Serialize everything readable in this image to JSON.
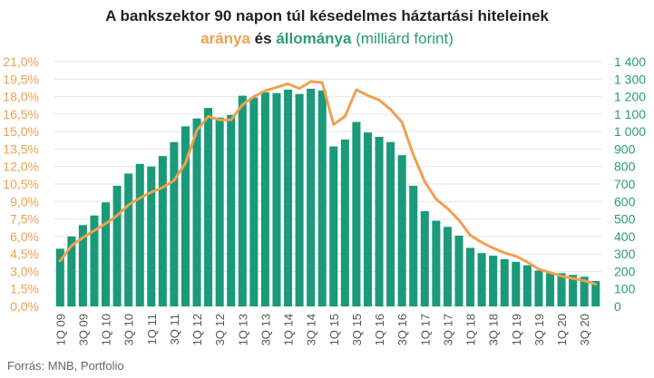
{
  "title": {
    "line1": "A bankszektor 90 napon túl késedelmes háztartási hiteleinek",
    "ratio_word": "aránya",
    "and_word": "és",
    "stock_word": "állománya",
    "unit": "(milliárd forint)"
  },
  "source": "Forrás: MNB, Portfolio",
  "colors": {
    "bars": "#1a9a7a",
    "line": "#f0a050",
    "left_axis_text": "#f0a050",
    "right_axis_text": "#2a9c78",
    "grid": "#e6e6e6",
    "x_text": "#555555"
  },
  "chart_data": {
    "type": "bar",
    "categories": [
      "1Q 09",
      "2Q 09",
      "3Q 09",
      "4Q 09",
      "1Q 10",
      "2Q 10",
      "3Q 10",
      "4Q 10",
      "1Q 11",
      "2Q 11",
      "3Q 11",
      "4Q 11",
      "1Q 12",
      "2Q 12",
      "3Q 12",
      "4Q 12",
      "1Q 13",
      "2Q 13",
      "3Q 13",
      "4Q 13",
      "1Q 14",
      "2Q 14",
      "3Q 14",
      "4Q 14",
      "1Q 15",
      "2Q 15",
      "3Q 15",
      "4Q 15",
      "1Q 16",
      "2Q 16",
      "3Q 16",
      "4Q 16",
      "1Q 17",
      "2Q 17",
      "3Q 17",
      "4Q 17",
      "1Q 18",
      "2Q 18",
      "3Q 18",
      "4Q 18",
      "1Q 19",
      "2Q 19",
      "3Q 19",
      "4Q 19",
      "1Q 20",
      "2Q 20",
      "3Q 20",
      "4Q 20"
    ],
    "x_tick_labels": [
      "1Q 09",
      "3Q 09",
      "1Q 10",
      "3Q 10",
      "1Q 11",
      "3Q 11",
      "1Q 12",
      "3Q 12",
      "1Q 13",
      "3Q 13",
      "1Q 14",
      "3Q 14",
      "1Q 15",
      "3Q 15",
      "1Q 16",
      "3Q 16",
      "1Q 17",
      "3Q 17",
      "1Q 18",
      "3Q 18",
      "1Q 19",
      "3Q 19",
      "1Q 20",
      "3Q 20"
    ],
    "y_left": {
      "ticks": [
        "0,0%",
        "1,5%",
        "3,0%",
        "4,5%",
        "6,0%",
        "7,5%",
        "9,0%",
        "10,5%",
        "12,0%",
        "13,5%",
        "15,0%",
        "16,5%",
        "18,0%",
        "19,5%",
        "21,0%"
      ],
      "ylim": [
        0,
        21
      ]
    },
    "y_right": {
      "ticks": [
        "0",
        "100",
        "200",
        "300",
        "400",
        "500",
        "600",
        "700",
        "800",
        "900",
        "1 000",
        "1 100",
        "1 200",
        "1 300",
        "1 400"
      ],
      "ylim": [
        0,
        1400
      ]
    },
    "series": [
      {
        "axis": "right",
        "kind": "bar",
        "values": [
          330,
          400,
          465,
          520,
          595,
          690,
          760,
          815,
          800,
          860,
          940,
          1030,
          1075,
          1135,
          1080,
          1095,
          1205,
          1195,
          1225,
          1220,
          1240,
          1215,
          1245,
          1235,
          915,
          955,
          1055,
          995,
          970,
          940,
          865,
          690,
          545,
          490,
          455,
          405,
          335,
          305,
          290,
          270,
          255,
          235,
          205,
          195,
          190,
          180,
          170,
          145
        ]
      },
      {
        "axis": "left",
        "kind": "line",
        "values": [
          3.9,
          5.2,
          5.9,
          6.5,
          7.1,
          7.8,
          8.7,
          9.3,
          9.8,
          10.2,
          10.8,
          12.3,
          15.1,
          16.3,
          16.0,
          16.0,
          17.3,
          18.0,
          18.5,
          18.8,
          19.1,
          18.7,
          19.3,
          19.2,
          15.6,
          16.3,
          18.6,
          18.1,
          17.7,
          16.9,
          15.8,
          13.0,
          10.7,
          9.2,
          8.4,
          7.4,
          6.1,
          5.5,
          5.0,
          4.6,
          4.3,
          3.8,
          3.2,
          2.9,
          2.6,
          2.4,
          2.2,
          1.9
        ]
      }
    ],
    "grid": true,
    "legend": "none"
  }
}
